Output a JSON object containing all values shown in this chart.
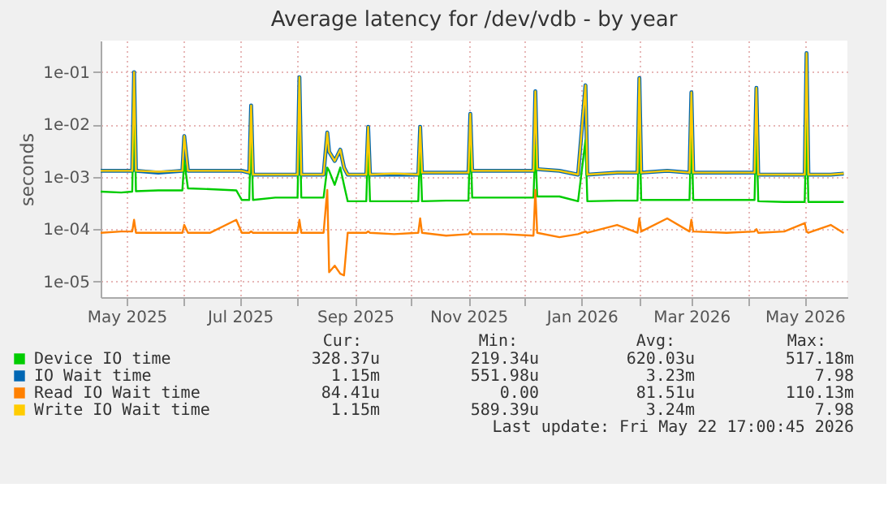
{
  "chart_data": {
    "type": "line",
    "title": "Average latency for /dev/vdb - by year",
    "ylabel": "seconds",
    "log": true,
    "grid": true,
    "legend": "bottom",
    "xlim": [
      "2025-04-17",
      "2026-05-24"
    ],
    "xticks": [
      {
        "value": "2025-05-01",
        "label": "May 2025"
      },
      {
        "value": "2025-06-01",
        "label": null
      },
      {
        "value": "2025-07-01",
        "label": "Jul 2025"
      },
      {
        "value": "2025-08-01",
        "label": null
      },
      {
        "value": "2025-09-01",
        "label": "Sep 2025"
      },
      {
        "value": "2025-10-01",
        "label": null
      },
      {
        "value": "2025-11-01",
        "label": "Nov 2025"
      },
      {
        "value": "2025-12-01",
        "label": null
      },
      {
        "value": "2026-01-01",
        "label": "Jan 2026"
      },
      {
        "value": "2026-02-01",
        "label": null
      },
      {
        "value": "2026-03-01",
        "label": "Mar 2026"
      },
      {
        "value": "2026-04-01",
        "label": null
      },
      {
        "value": "2026-05-01",
        "label": "May 2026"
      }
    ],
    "ylim": [
      5e-06,
      0.4
    ],
    "yticks": [
      {
        "value": 1e-05,
        "label": "1e-05"
      },
      {
        "value": 0.0001,
        "label": "1e-04"
      },
      {
        "value": 0.001,
        "label": "1e-03"
      },
      {
        "value": 0.01,
        "label": "1e-02"
      },
      {
        "value": 0.1,
        "label": "1e-01"
      }
    ],
    "x": [
      "2025-04-17",
      "2025-04-28",
      "2025-05-04",
      "2025-05-05",
      "2025-05-06",
      "2025-05-18",
      "2025-05-31",
      "2025-06-01",
      "2025-06-03",
      "2025-06-15",
      "2025-06-29",
      "2025-07-02",
      "2025-07-06",
      "2025-07-07",
      "2025-07-08",
      "2025-07-20",
      "2025-08-01",
      "2025-08-02",
      "2025-08-03",
      "2025-08-15",
      "2025-08-17",
      "2025-08-18",
      "2025-08-21",
      "2025-08-24",
      "2025-08-26",
      "2025-08-28",
      "2025-09-07",
      "2025-09-08",
      "2025-09-09",
      "2025-09-22",
      "2025-10-05",
      "2025-10-06",
      "2025-10-07",
      "2025-10-20",
      "2025-11-01",
      "2025-11-02",
      "2025-11-03",
      "2025-11-20",
      "2025-12-06",
      "2025-12-07",
      "2025-12-08",
      "2025-12-20",
      "2025-12-30",
      "2026-01-03",
      "2026-01-04",
      "2026-01-20",
      "2026-01-31",
      "2026-02-01",
      "2026-02-02",
      "2026-02-16",
      "2026-02-28",
      "2026-03-01",
      "2026-03-02",
      "2026-03-20",
      "2026-04-04",
      "2026-04-05",
      "2026-04-06",
      "2026-04-20",
      "2026-05-01",
      "2026-05-02",
      "2026-05-03",
      "2026-05-15",
      "2026-05-22"
    ],
    "series": [
      {
        "name": "Device IO time",
        "color": "#00cc00",
        "values": [
          0.00052,
          0.0005,
          0.00052,
          0.05,
          0.00053,
          0.00055,
          0.00055,
          0.002,
          0.0006,
          0.00058,
          0.00055,
          0.00036,
          0.00036,
          0.01,
          0.00036,
          0.0004,
          0.0004,
          0.03,
          0.0004,
          0.0004,
          0.0015,
          0.0013,
          0.0007,
          0.0015,
          0.0007,
          0.00034,
          0.00034,
          0.005,
          0.00034,
          0.00034,
          0.00034,
          0.004,
          0.00034,
          0.00035,
          0.00035,
          0.008,
          0.0004,
          0.0004,
          0.0004,
          0.004,
          0.00042,
          0.00042,
          0.00034,
          0.005,
          0.00034,
          0.00035,
          0.00035,
          0.012,
          0.00036,
          0.00036,
          0.00036,
          0.01,
          0.00036,
          0.00036,
          0.00036,
          0.01,
          0.00034,
          0.00033,
          0.00033,
          0.01,
          0.00033,
          0.00033,
          0.00033
        ]
      },
      {
        "name": "IO Wait time",
        "color": "#0066b3",
        "values": [
          0.0013,
          0.0013,
          0.0013,
          0.1,
          0.0013,
          0.0012,
          0.0013,
          0.006,
          0.0013,
          0.0013,
          0.0013,
          0.0013,
          0.0012,
          0.023,
          0.0011,
          0.0011,
          0.0011,
          0.08,
          0.0011,
          0.0011,
          0.007,
          0.003,
          0.002,
          0.0033,
          0.0015,
          0.0011,
          0.0011,
          0.009,
          0.0011,
          0.0011,
          0.0011,
          0.009,
          0.0012,
          0.0012,
          0.0012,
          0.016,
          0.0013,
          0.0013,
          0.0013,
          0.043,
          0.0014,
          0.0013,
          0.0011,
          0.056,
          0.0011,
          0.0012,
          0.0012,
          0.077,
          0.0012,
          0.0013,
          0.0012,
          0.041,
          0.0012,
          0.0012,
          0.0012,
          0.05,
          0.0011,
          0.0011,
          0.0011,
          0.23,
          0.0011,
          0.0011,
          0.00115
        ]
      },
      {
        "name": "Read IO Wait time",
        "color": "#ff8000",
        "values": [
          8.5e-05,
          9e-05,
          9e-05,
          0.00015,
          8.5e-05,
          8.5e-05,
          8.5e-05,
          0.00012,
          8.5e-05,
          8.5e-05,
          0.00015,
          8.5e-05,
          8.5e-05,
          9e-05,
          8.5e-05,
          8.5e-05,
          8.5e-05,
          0.00015,
          8.5e-05,
          8.5e-05,
          0.00056,
          1.5e-05,
          2e-05,
          1.4e-05,
          1.3e-05,
          8.5e-05,
          8.5e-05,
          9e-05,
          8.5e-05,
          8e-05,
          8.5e-05,
          0.00016,
          8.5e-05,
          7.5e-05,
          8e-05,
          9e-05,
          8e-05,
          8e-05,
          7.5e-05,
          0.00056,
          8.5e-05,
          7e-05,
          8e-05,
          9e-05,
          8.5e-05,
          0.00012,
          8.5e-05,
          0.00016,
          9e-05,
          0.00016,
          9e-05,
          0.00015,
          9e-05,
          8.5e-05,
          9e-05,
          0.0001,
          8.5e-05,
          9e-05,
          0.00013,
          9e-05,
          8.5e-05,
          0.00012,
          8.4e-05
        ]
      },
      {
        "name": "Write IO Wait time",
        "color": "#ffcc00",
        "values": [
          0.0013,
          0.0013,
          0.0013,
          0.1,
          0.0013,
          0.00125,
          0.0013,
          0.006,
          0.0013,
          0.0013,
          0.0013,
          0.0013,
          0.0012,
          0.023,
          0.0011,
          0.0011,
          0.0011,
          0.08,
          0.0011,
          0.0011,
          0.007,
          0.003,
          0.002,
          0.0033,
          0.0015,
          0.0011,
          0.0011,
          0.009,
          0.0011,
          0.00115,
          0.0011,
          0.009,
          0.0012,
          0.0012,
          0.0012,
          0.016,
          0.0013,
          0.0013,
          0.0013,
          0.043,
          0.0014,
          0.0013,
          0.0011,
          0.056,
          0.0011,
          0.0012,
          0.0012,
          0.077,
          0.0012,
          0.0013,
          0.0012,
          0.041,
          0.0012,
          0.0012,
          0.0012,
          0.05,
          0.0011,
          0.0011,
          0.0011,
          0.23,
          0.0011,
          0.0011,
          0.00115
        ]
      }
    ],
    "annotations": [
      "Cur:",
      "Min:",
      "Avg:",
      "Max:",
      "328.37u",
      "219.34u",
      "620.03u",
      "517.18m",
      "1.15m",
      "551.98u",
      "3.23m",
      "7.98",
      "84.41u",
      "0.00",
      "81.51u",
      "110.13m",
      "1.15m",
      "589.39u",
      "3.24m",
      "7.98",
      "Last update: Fri May 22 17:00:45 2026"
    ]
  }
}
